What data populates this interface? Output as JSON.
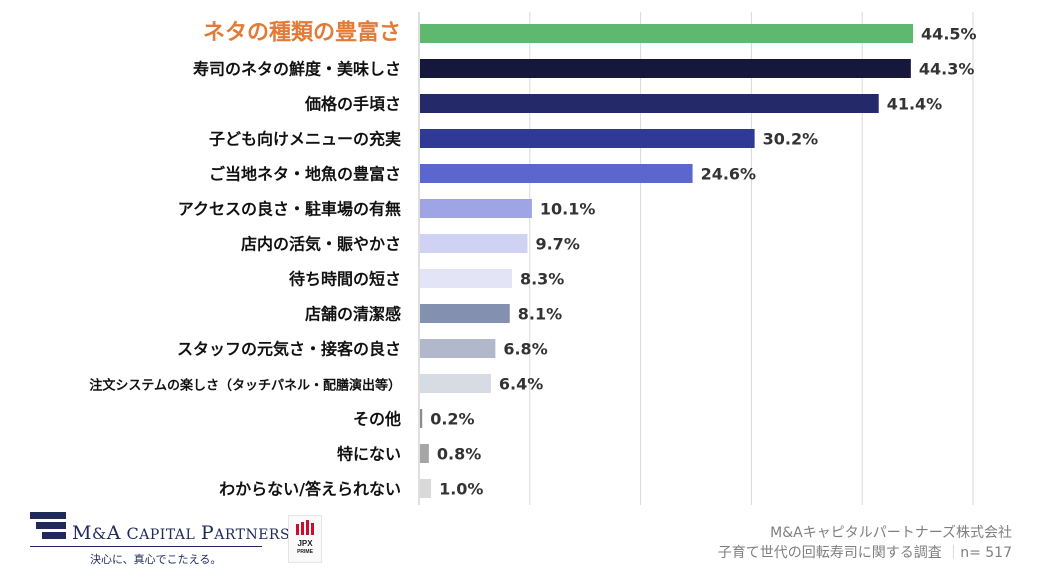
{
  "chart_data": {
    "type": "bar",
    "orientation": "horizontal",
    "categories": [
      "ネタの種類の豊富さ",
      "寿司のネタの鮮度・美味しさ",
      "価格の手頃さ",
      "子ども向けメニューの充実",
      "ご当地ネタ・地魚の豊富さ",
      "アクセスの良さ・駐車場の有無",
      "店内の活気・賑やかさ",
      "待ち時間の短さ",
      "店舗の清潔感",
      "スタッフの元気さ・接客の良さ",
      "注文システムの楽しさ（タッチパネル・配膳演出等）",
      "その他",
      "特にない",
      "わからない/答えられない"
    ],
    "values": [
      44.5,
      44.3,
      41.4,
      30.2,
      24.6,
      10.1,
      9.7,
      8.3,
      8.1,
      6.8,
      6.4,
      0.2,
      0.8,
      1.0
    ],
    "value_labels": [
      "44.5%",
      "44.3%",
      "41.4%",
      "30.2%",
      "24.6%",
      "10.1%",
      "9.7%",
      "8.3%",
      "8.1%",
      "6.8%",
      "6.4%",
      "0.2%",
      "0.8%",
      "1.0%"
    ],
    "bar_colors": [
      "#5fb86f",
      "#15173d",
      "#24296a",
      "#2f3a94",
      "#5b66cf",
      "#9ea4e4",
      "#cfd2f3",
      "#e3e5f7",
      "#8490b0",
      "#b1b8cc",
      "#d7dbe4",
      "#8c8c8c",
      "#a6a6a6",
      "#d9d9d9"
    ],
    "highlight_category_color": "#e37b38",
    "xlim": [
      0,
      50
    ],
    "gridlines": [
      0,
      10,
      20,
      30,
      40,
      50
    ],
    "grid": true
  },
  "footer": {
    "source_company": "M&Aキャピタルパートナーズ株式会社",
    "source_survey": "子育て世代の回転寿司に関する調査",
    "sample_size": "n= 517",
    "logo_tagline": "決心に、真心でこたえる。",
    "jpx_text": "JPX",
    "jpx_sub": "PRIME"
  }
}
